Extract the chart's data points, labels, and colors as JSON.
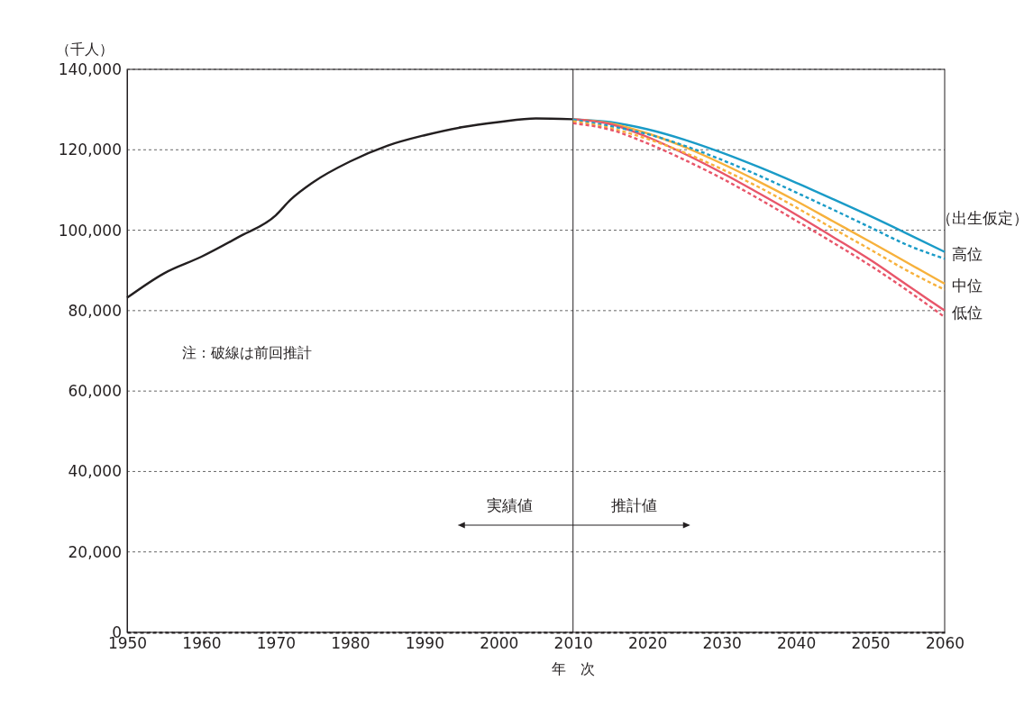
{
  "chart_data": {
    "type": "line",
    "ylabel": "（千人）",
    "xlabel": "年　次",
    "legend_title": "（出生仮定）",
    "xlim": [
      1950,
      2060
    ],
    "xticks": [
      1950,
      1960,
      1970,
      1980,
      1990,
      2000,
      2010,
      2020,
      2030,
      2040,
      2050,
      2060
    ],
    "ylim": [
      0,
      140000
    ],
    "yticks": [
      {
        "value": 0,
        "label": "0"
      },
      {
        "value": 20000,
        "label": "20,000"
      },
      {
        "value": 40000,
        "label": "40,000"
      },
      {
        "value": 60000,
        "label": "60,000"
      },
      {
        "value": 80000,
        "label": "80,000"
      },
      {
        "value": 100000,
        "label": "100,000"
      },
      {
        "value": 120000,
        "label": "120,000"
      },
      {
        "value": 140000,
        "label": "140,000"
      }
    ],
    "grid": "y",
    "marker": "none",
    "legend": "right",
    "ref_lines": [
      {
        "axis": "x",
        "value": 2010,
        "color": "#231f20"
      }
    ],
    "annotations": [
      "注：破線は前回推計",
      "実績値",
      "推計値"
    ],
    "series": [
      {
        "color": "#231f20",
        "line_style": "solid",
        "x": [
          1950,
          1955,
          1960,
          1965,
          1970,
          1972,
          1975,
          1980,
          1985,
          1990,
          1995,
          2000,
          2005,
          2010
        ],
        "values": [
          83200,
          89300,
          93400,
          98300,
          103700,
          107600,
          111900,
          117100,
          121000,
          123600,
          125600,
          126900,
          127800,
          127600
        ]
      },
      {
        "name": "高位",
        "color": "#1a9bc7",
        "line_style": "solid",
        "x": [
          2010,
          2015,
          2020,
          2025,
          2030,
          2035,
          2040,
          2045,
          2050,
          2055,
          2060
        ],
        "values": [
          127600,
          126900,
          125100,
          122500,
          119300,
          115700,
          111800,
          107700,
          103500,
          99100,
          94600
        ]
      },
      {
        "name": "中位",
        "color": "#f7b13c",
        "line_style": "solid",
        "x": [
          2010,
          2015,
          2020,
          2025,
          2030,
          2035,
          2040,
          2045,
          2050,
          2055,
          2060
        ],
        "values": [
          127600,
          126600,
          124100,
          120700,
          116600,
          112100,
          107300,
          102200,
          97100,
          91900,
          86700
        ]
      },
      {
        "name": "低位",
        "color": "#e8566a",
        "line_style": "solid",
        "x": [
          2010,
          2015,
          2020,
          2025,
          2030,
          2035,
          2040,
          2045,
          2050,
          2055,
          2060
        ],
        "values": [
          127600,
          126400,
          123200,
          119000,
          114300,
          109200,
          103900,
          98300,
          92600,
          86300,
          80000
        ]
      },
      {
        "color": "#1a9bc7",
        "line_style": "dashed",
        "x": [
          2010,
          2015,
          2020,
          2025,
          2030,
          2035,
          2040,
          2045,
          2050,
          2055,
          2060
        ],
        "values": [
          127500,
          125900,
          123900,
          121000,
          117500,
          113600,
          109400,
          105100,
          100700,
          96300,
          92900
        ]
      },
      {
        "color": "#f7b13c",
        "line_style": "dashed",
        "x": [
          2010,
          2015,
          2020,
          2025,
          2030,
          2035,
          2040,
          2045,
          2050,
          2055,
          2060
        ],
        "values": [
          127100,
          125400,
          122700,
          119300,
          115200,
          110700,
          105700,
          100400,
          95200,
          89900,
          85200
        ]
      },
      {
        "color": "#e8566a",
        "line_style": "dashed",
        "x": [
          2010,
          2015,
          2020,
          2025,
          2030,
          2035,
          2040,
          2045,
          2050,
          2055,
          2060
        ],
        "values": [
          126600,
          125000,
          121600,
          117500,
          112900,
          107800,
          102400,
          96900,
          91200,
          85000,
          78400
        ]
      }
    ]
  }
}
